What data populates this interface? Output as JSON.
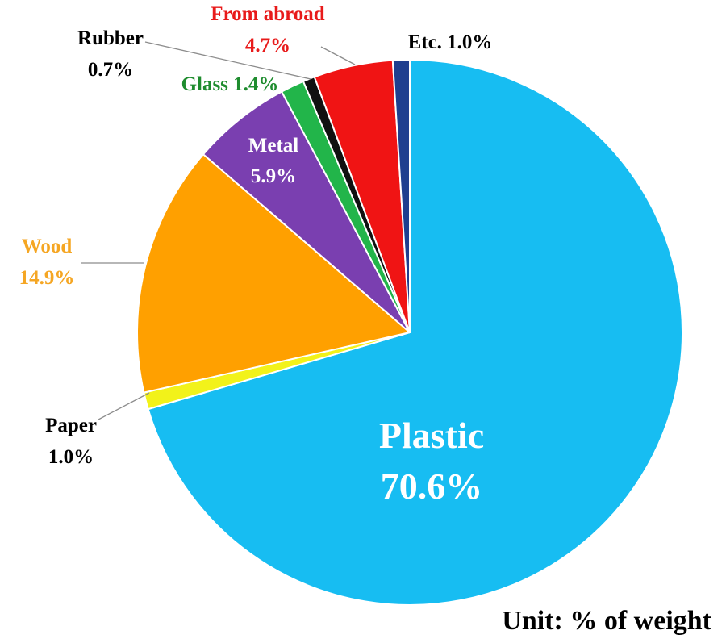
{
  "chart_data": {
    "type": "pie",
    "start": "top, clockwise",
    "slices": [
      {
        "name": "Plastic",
        "value": 70.6,
        "label": "Plastic",
        "value_label": "70.6%",
        "color": "#17BDF2",
        "label_color": "#FFFFFF"
      },
      {
        "name": "Paper",
        "value": 1.0,
        "label": "Paper",
        "value_label": "1.0%",
        "color": "#F2F21A",
        "label_color": "#000000"
      },
      {
        "name": "Wood",
        "value": 14.9,
        "label": "Wood",
        "value_label": "14.9%",
        "color": "#FFA000",
        "label_color": "#F5A623"
      },
      {
        "name": "Metal",
        "value": 5.9,
        "label": "Metal",
        "value_label": "5.9%",
        "color": "#7A3FB0",
        "label_color": "#FFFFFF"
      },
      {
        "name": "Glass",
        "value": 1.4,
        "label": "Glass 1.4%",
        "value_label": "",
        "color": "#22B54A",
        "label_color": "#1E8C2E"
      },
      {
        "name": "Rubber",
        "value": 0.7,
        "label": "Rubber",
        "value_label": "0.7%",
        "color": "#111111",
        "label_color": "#000000"
      },
      {
        "name": "From abroad",
        "value": 4.7,
        "label": "From abroad",
        "value_label": "4.7%",
        "color": "#F01414",
        "label_color": "#E81A1A"
      },
      {
        "name": "Etc.",
        "value": 1.0,
        "label": "Etc. 1.0%",
        "value_label": "",
        "color": "#1F3F8F",
        "label_color": "#000000"
      }
    ],
    "legend": "none",
    "unit_note": "Unit: % of weight"
  }
}
